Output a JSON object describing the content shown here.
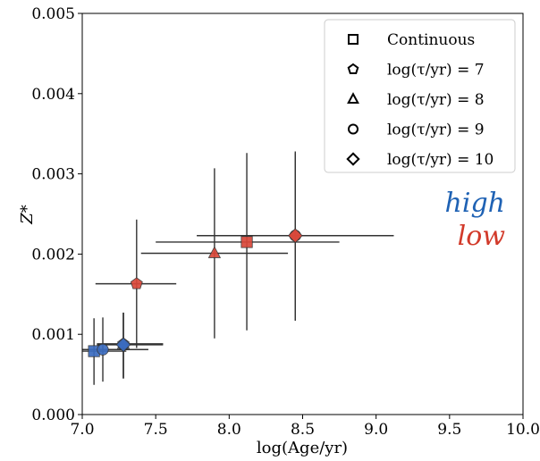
{
  "chart_data": {
    "type": "scatter",
    "xlabel": "log(Age/yr)",
    "ylabel": "Z*",
    "xlim": [
      7.0,
      10.0
    ],
    "ylim": [
      0.0,
      0.005
    ],
    "xticks": [
      "7.0",
      "7.5",
      "8.0",
      "8.5",
      "9.0",
      "9.5",
      "10.0"
    ],
    "yticks": [
      "0.000",
      "0.001",
      "0.002",
      "0.003",
      "0.004",
      "0.005"
    ],
    "xtick_values": [
      7.0,
      7.5,
      8.0,
      8.5,
      9.0,
      9.5,
      10.0
    ],
    "ytick_values": [
      0.0,
      0.001,
      0.002,
      0.003,
      0.004,
      0.005
    ],
    "grid": false,
    "legend_position": "top-right",
    "legend": [
      {
        "marker": "square",
        "label": "Continuous"
      },
      {
        "marker": "pentagon",
        "label": "log(τ/yr) = 7"
      },
      {
        "marker": "triangle",
        "label": "log(τ/yr) = 8"
      },
      {
        "marker": "circle",
        "label": "log(τ/yr) = 9"
      },
      {
        "marker": "diamond",
        "label": "log(τ/yr) = 10"
      }
    ],
    "annotations": [
      {
        "text": "high",
        "color": "#1f62b4"
      },
      {
        "text": "low",
        "color": "#d23a2a"
      }
    ],
    "series": [
      {
        "group": "high",
        "color": "#3b6cc0",
        "points": [
          {
            "marker": "square",
            "x": 7.08,
            "y": 0.00079,
            "xerr": [
              7.0,
              7.3
            ],
            "yerr": [
              0.00037,
              0.0012
            ]
          },
          {
            "marker": "pentagon",
            "x": 7.28,
            "y": 0.00088,
            "xerr": [
              7.1,
              7.55
            ],
            "yerr": [
              0.00045,
              0.00127
            ]
          },
          {
            "marker": "triangle",
            "x": 7.28,
            "y": 0.00088,
            "xerr": [
              7.1,
              7.55
            ],
            "yerr": [
              0.00045,
              0.00127
            ]
          },
          {
            "marker": "circle",
            "x": 7.14,
            "y": 0.00081,
            "xerr": [
              7.0,
              7.45
            ],
            "yerr": [
              0.00041,
              0.00121
            ]
          },
          {
            "marker": "diamond",
            "x": 7.28,
            "y": 0.00087,
            "xerr": [
              7.1,
              7.55
            ],
            "yerr": [
              0.00045,
              0.00127
            ]
          }
        ]
      },
      {
        "group": "low",
        "color": "#d9483a",
        "points": [
          {
            "marker": "square",
            "x": 8.12,
            "y": 0.00215,
            "xerr": [
              7.5,
              8.75
            ],
            "yerr": [
              0.00105,
              0.00326
            ]
          },
          {
            "marker": "pentagon",
            "x": 7.37,
            "y": 0.00163,
            "xerr": [
              7.09,
              7.64
            ],
            "yerr": [
              0.00083,
              0.00243
            ]
          },
          {
            "marker": "triangle",
            "x": 7.9,
            "y": 0.00201,
            "xerr": [
              7.4,
              8.4
            ],
            "yerr": [
              0.00095,
              0.00307
            ]
          },
          {
            "marker": "circle",
            "x": 8.45,
            "y": 0.00223,
            "xerr": [
              7.78,
              9.12
            ],
            "yerr": [
              0.00117,
              0.00328
            ]
          },
          {
            "marker": "diamond",
            "x": 8.45,
            "y": 0.00223,
            "xerr": [
              7.78,
              9.12
            ],
            "yerr": [
              0.00117,
              0.00326
            ]
          }
        ]
      }
    ]
  }
}
